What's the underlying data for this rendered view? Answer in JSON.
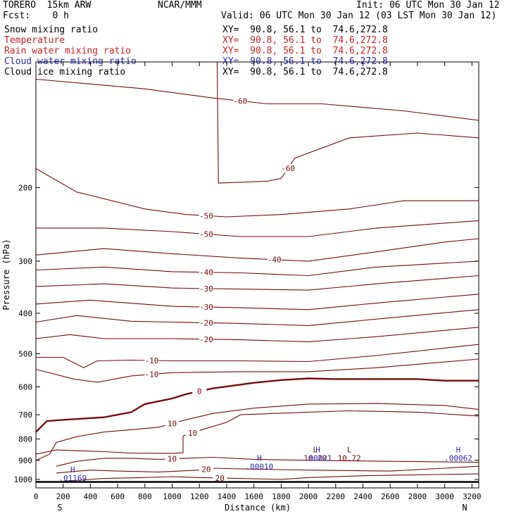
{
  "header": {
    "model": "TORERO  15km ARW",
    "center": "NCAR/MMM",
    "init": "Init: 06 UTC Mon 30 Jan 12",
    "fcst": "Fcst:    0 h",
    "valid": "Valid: 06 UTC Mon 30 Jan 12 (03 LST Mon 30 Jan 12)"
  },
  "fields": [
    {
      "name": "Snow mixing ratio",
      "xy": "XY=  90.8, 56.1 to  74.6,272.8",
      "color": "#000000"
    },
    {
      "name": "Temperature",
      "xy": "XY=  90.8, 56.1 to  74.6,272.8",
      "color": "#c0202c"
    },
    {
      "name": "Rain water mixing ratio",
      "xy": "XY=  90.8, 56.1 to  74.6,272.8",
      "color": "#d02020"
    },
    {
      "name": "Cloud water mixing ratio",
      "xy": "XY=  90.8, 56.1 to  74.6,272.8",
      "color": "#2a2ab8"
    },
    {
      "name": "Cloud ice mixing ratio",
      "xy": "XY=  90.8, 56.1 to  74.6,272.8",
      "color": "#000000"
    }
  ],
  "chart_data": {
    "type": "contour",
    "xlabel": "Distance (km)",
    "ylabel": "Pressure (hPa)",
    "xlim": [
      0,
      3250
    ],
    "ylim": [
      100,
      1048
    ],
    "y_scale": "log",
    "x_ticks": [
      0,
      200,
      400,
      600,
      800,
      1000,
      1200,
      1400,
      1600,
      1800,
      2000,
      2200,
      2400,
      2600,
      2800,
      3000,
      3200
    ],
    "y_ticks": [
      200,
      300,
      400,
      500,
      600,
      700,
      800,
      900,
      1000
    ],
    "endpoints": {
      "left": "S",
      "right": "N"
    },
    "ground_pressure": 1014,
    "temperature_color": "#7a0a0a",
    "isotherms": [
      {
        "level": -60,
        "points": [
          [
            0,
            110
          ],
          [
            800,
            116
          ],
          [
            1300,
            122
          ],
          [
            1700,
            126
          ],
          [
            2100,
            126
          ],
          [
            2700,
            131
          ],
          [
            3250,
            138
          ]
        ]
      },
      {
        "level": -60,
        "points": [
          [
            1330,
            100
          ],
          [
            1340,
            195
          ],
          [
            1700,
            193
          ],
          [
            1800,
            190
          ],
          [
            1900,
            170
          ],
          [
            2300,
            152
          ],
          [
            2800,
            148
          ],
          [
            3250,
            152
          ]
        ]
      },
      {
        "level": -50,
        "points": [
          [
            0,
            180
          ],
          [
            300,
            205
          ],
          [
            800,
            225
          ],
          [
            1100,
            232
          ],
          [
            1400,
            235
          ],
          [
            1800,
            232
          ],
          [
            2300,
            225
          ],
          [
            2700,
            215
          ],
          [
            3250,
            215
          ]
        ]
      },
      {
        "level": -50,
        "points": [
          [
            0,
            250
          ],
          [
            500,
            250
          ],
          [
            1000,
            255
          ],
          [
            1500,
            262
          ],
          [
            2000,
            262
          ],
          [
            2500,
            250
          ],
          [
            3250,
            240
          ]
        ]
      },
      {
        "level": -40,
        "points": [
          [
            0,
            290
          ],
          [
            500,
            280
          ],
          [
            1000,
            288
          ],
          [
            1500,
            295
          ],
          [
            2000,
            300
          ],
          [
            2500,
            285
          ],
          [
            3000,
            270
          ],
          [
            3250,
            265
          ]
        ]
      },
      {
        "level": -40,
        "points": [
          [
            0,
            315
          ],
          [
            500,
            310
          ],
          [
            1000,
            318
          ],
          [
            1500,
            320
          ],
          [
            2000,
            325
          ],
          [
            2500,
            310
          ],
          [
            3250,
            300
          ]
        ]
      },
      {
        "level": -30,
        "points": [
          [
            0,
            345
          ],
          [
            500,
            340
          ],
          [
            1000,
            348
          ],
          [
            1500,
            350
          ],
          [
            2000,
            352
          ],
          [
            2500,
            340
          ],
          [
            3250,
            325
          ]
        ]
      },
      {
        "level": -30,
        "points": [
          [
            0,
            380
          ],
          [
            400,
            372
          ],
          [
            1000,
            385
          ],
          [
            1500,
            388
          ],
          [
            2000,
            392
          ],
          [
            2500,
            378
          ],
          [
            3250,
            360
          ]
        ]
      },
      {
        "level": -20,
        "points": [
          [
            0,
            420
          ],
          [
            300,
            405
          ],
          [
            700,
            418
          ],
          [
            1000,
            420
          ],
          [
            1500,
            423
          ],
          [
            2000,
            428
          ],
          [
            2500,
            413
          ],
          [
            3250,
            392
          ]
        ]
      },
      {
        "level": -20,
        "points": [
          [
            0,
            460
          ],
          [
            250,
            450
          ],
          [
            500,
            460
          ],
          [
            1000,
            460
          ],
          [
            1500,
            463
          ],
          [
            2000,
            468
          ],
          [
            2500,
            455
          ],
          [
            3250,
            432
          ]
        ]
      },
      {
        "level": -10,
        "points": [
          [
            0,
            510
          ],
          [
            200,
            510
          ],
          [
            350,
            540
          ],
          [
            450,
            520
          ],
          [
            700,
            518
          ],
          [
            1000,
            520
          ],
          [
            1500,
            520
          ],
          [
            2000,
            522
          ],
          [
            2500,
            505
          ],
          [
            3250,
            475
          ]
        ]
      },
      {
        "level": -10,
        "points": [
          [
            0,
            545
          ],
          [
            280,
            575
          ],
          [
            450,
            585
          ],
          [
            700,
            565
          ],
          [
            1000,
            555
          ],
          [
            1500,
            552
          ],
          [
            2000,
            552
          ],
          [
            2500,
            540
          ],
          [
            3250,
            515
          ]
        ]
      },
      {
        "level": 0,
        "points": [
          [
            0,
            770
          ],
          [
            80,
            725
          ],
          [
            200,
            720
          ],
          [
            500,
            710
          ],
          [
            700,
            690
          ],
          [
            800,
            660
          ],
          [
            1000,
            640
          ],
          [
            1100,
            625
          ],
          [
            1300,
            605
          ],
          [
            1600,
            587
          ],
          [
            1800,
            578
          ],
          [
            2000,
            573
          ],
          [
            2200,
            575
          ],
          [
            2500,
            575
          ],
          [
            2800,
            575
          ],
          [
            3000,
            580
          ],
          [
            3250,
            580
          ]
        ]
      },
      {
        "level": 10,
        "points": [
          [
            0,
            900
          ],
          [
            100,
            870
          ],
          [
            150,
            815
          ],
          [
            300,
            790
          ],
          [
            500,
            770
          ],
          [
            700,
            760
          ],
          [
            900,
            750
          ],
          [
            1100,
            720
          ],
          [
            1300,
            695
          ],
          [
            1600,
            675
          ],
          [
            2000,
            660
          ],
          [
            2500,
            658
          ],
          [
            3000,
            665
          ],
          [
            3250,
            680
          ]
        ]
      },
      {
        "level": 10,
        "points": [
          [
            0,
            870
          ],
          [
            150,
            850
          ],
          [
            500,
            858
          ],
          [
            700,
            865
          ],
          [
            1000,
            866
          ],
          [
            1080,
            863
          ],
          [
            1080,
            787
          ],
          [
            1220,
            760
          ],
          [
            1400,
            730
          ],
          [
            1500,
            700
          ],
          [
            2000,
            690
          ],
          [
            2300,
            685
          ],
          [
            2800,
            690
          ],
          [
            3250,
            705
          ]
        ]
      },
      {
        "level": 10,
        "points": [
          [
            150,
            930
          ],
          [
            300,
            905
          ],
          [
            500,
            890
          ],
          [
            700,
            890
          ],
          [
            900,
            895
          ],
          [
            1100,
            890
          ],
          [
            1300,
            885
          ],
          [
            1600,
            895
          ],
          [
            2000,
            900
          ],
          [
            2600,
            905
          ],
          [
            3250,
            910
          ]
        ]
      },
      {
        "level": 20,
        "points": [
          [
            150,
            965
          ],
          [
            400,
            950
          ],
          [
            600,
            955
          ],
          [
            900,
            960
          ],
          [
            1200,
            950
          ],
          [
            1300,
            940
          ],
          [
            1600,
            945
          ],
          [
            2000,
            950
          ],
          [
            2600,
            955
          ],
          [
            3000,
            940
          ],
          [
            3250,
            930
          ]
        ]
      },
      {
        "level": 20,
        "points": [
          [
            200,
            1010
          ],
          [
            500,
            995
          ],
          [
            800,
            990
          ],
          [
            1000,
            985
          ],
          [
            1200,
            990
          ],
          [
            1500,
            995
          ],
          [
            1800,
            1000
          ],
          [
            2000,
            990
          ],
          [
            2400,
            980
          ],
          [
            2800,
            975
          ],
          [
            3250,
            970
          ]
        ]
      }
    ],
    "extrema": [
      {
        "type": "H",
        "x": 270,
        "p": 962,
        "value": ".01169",
        "color": "#2a2ab8"
      },
      {
        "type": "H",
        "x": 1640,
        "p": 903,
        "value": ".00010",
        "color": "#2a2ab8"
      },
      {
        "type": "L",
        "x": 2050,
        "p": 862,
        "value": "10.70",
        "color": "#7a0a0a"
      },
      {
        "type": "H",
        "x": 2070,
        "p": 862,
        "value": ".00021",
        "color": "#2a2ab8"
      },
      {
        "type": "L",
        "x": 2300,
        "p": 862,
        "value": "10.72",
        "color": "#7a0a0a"
      },
      {
        "type": "H",
        "x": 3100,
        "p": 862,
        "value": ".00062",
        "color": "#2a2ab8"
      }
    ]
  }
}
